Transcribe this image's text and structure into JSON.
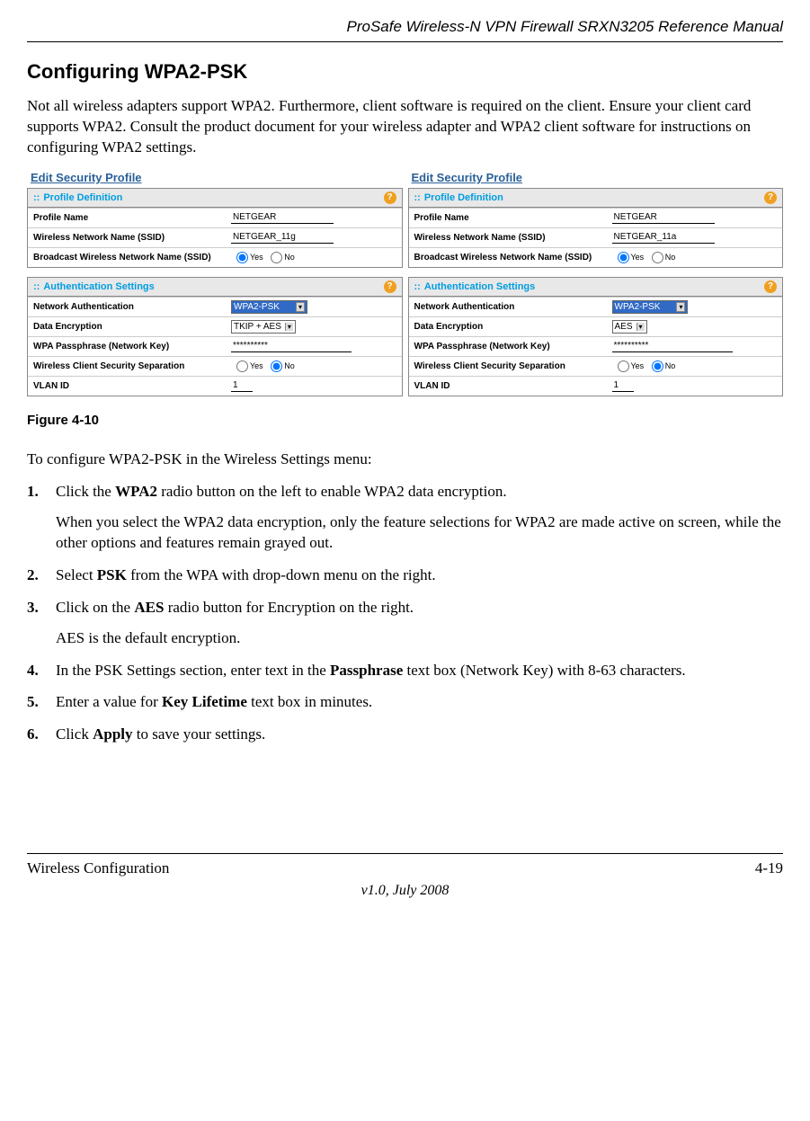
{
  "header": {
    "doc_title": "ProSafe Wireless-N VPN Firewall SRXN3205 Reference Manual"
  },
  "section": {
    "heading": "Configuring WPA2-PSK",
    "intro": "Not all wireless adapters support WPA2. Furthermore, client software is required on the client. Ensure your client card supports WPA2. Consult the product document for your wireless adapter and WPA2 client software for instructions on configuring WPA2 settings."
  },
  "figure": {
    "caption": "Figure 4-10",
    "left": {
      "title": "Edit Security Profile",
      "profile_section": "Profile Definition",
      "auth_section": "Authentication Settings",
      "profile_name_label": "Profile Name",
      "profile_name_value": "NETGEAR",
      "ssid_label": "Wireless Network Name (SSID)",
      "ssid_value": "NETGEAR_11g",
      "broadcast_label": "Broadcast Wireless Network Name (SSID)",
      "yes": "Yes",
      "no": "No",
      "net_auth_label": "Network Authentication",
      "net_auth_value": "WPA2-PSK",
      "data_enc_label": "Data Encryption",
      "data_enc_value": "TKIP + AES",
      "passphrase_label": "WPA Passphrase (Network Key)",
      "passphrase_value": "**********",
      "separation_label": "Wireless Client Security Separation",
      "vlan_label": "VLAN ID",
      "vlan_value": "1"
    },
    "right": {
      "title": "Edit Security Profile",
      "profile_section": "Profile Definition",
      "auth_section": "Authentication Settings",
      "profile_name_label": "Profile Name",
      "profile_name_value": "NETGEAR",
      "ssid_label": "Wireless Network Name (SSID)",
      "ssid_value": "NETGEAR_11a",
      "broadcast_label": "Broadcast Wireless Network Name (SSID)",
      "yes": "Yes",
      "no": "No",
      "net_auth_label": "Network Authentication",
      "net_auth_value": "WPA2-PSK",
      "data_enc_label": "Data Encryption",
      "data_enc_value": "AES",
      "passphrase_label": "WPA Passphrase (Network Key)",
      "passphrase_value": "**********",
      "separation_label": "Wireless Client Security Separation",
      "vlan_label": "VLAN ID",
      "vlan_value": "1"
    }
  },
  "instructions": {
    "lead": "To configure WPA2-PSK in the Wireless Settings menu:",
    "step1a": "Click the ",
    "step1b": "WPA2",
    "step1c": " radio button on the left to enable WPA2 data encryption.",
    "step1_sub": "When you select the WPA2 data encryption, only the feature selections for WPA2 are made active on screen, while the other options and features remain grayed out.",
    "step2a": "Select ",
    "step2b": "PSK",
    "step2c": " from the WPA with drop-down menu on the right.",
    "step3a": "Click on the ",
    "step3b": "AES",
    "step3c": " radio button for Encryption on the right.",
    "step3_sub": "AES is the default encryption.",
    "step4a": "In the PSK Settings section, enter text in the ",
    "step4b": "Passphrase",
    "step4c": " text box (Network Key) with 8-63 characters.",
    "step5a": "Enter a value for ",
    "step5b": "Key Lifetime",
    "step5c": " text box in minutes.",
    "step6a": "Click ",
    "step6b": "Apply",
    "step6c": " to save your settings."
  },
  "footer": {
    "left": "Wireless Configuration",
    "right": "4-19",
    "center": "v1.0, July 2008"
  }
}
